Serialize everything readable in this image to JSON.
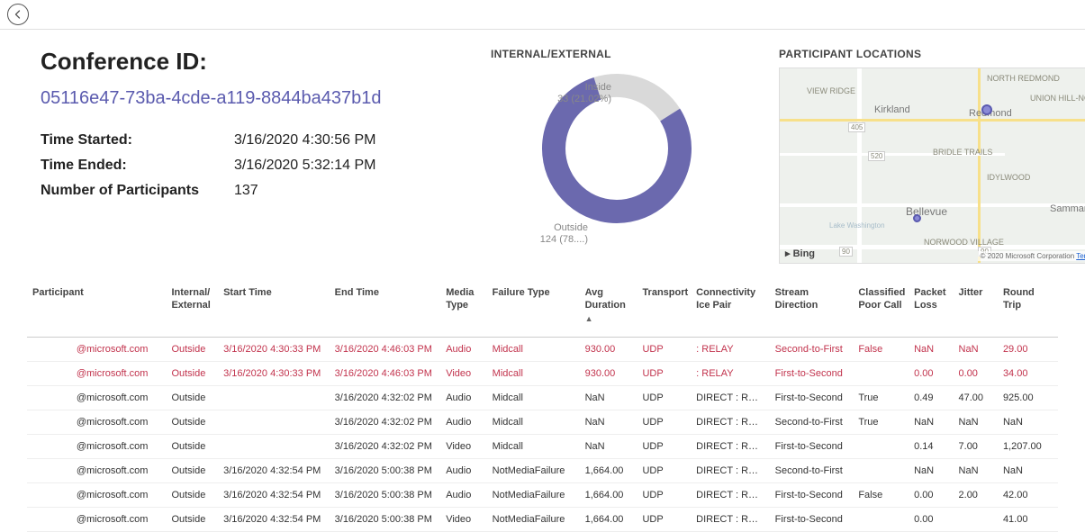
{
  "header": {
    "title_label": "Conference ID:",
    "conference_id": "05116e47-73ba-4cde-a119-8844ba437b1d",
    "time_started_label": "Time Started:",
    "time_started_value": "3/16/2020 4:30:56 PM",
    "time_ended_label": "Time Ended:",
    "time_ended_value": "3/16/2020 5:32:14 PM",
    "participants_label": "Number of Participants",
    "participants_value": "137"
  },
  "donut": {
    "title": "INTERNAL/EXTERNAL",
    "inside_label": "Inside",
    "inside_text": "33 (21.02%)",
    "inside_value": 33,
    "inside_pct": 21.02,
    "outside_label": "Outside",
    "outside_text": "124 (78....)",
    "outside_value": 124,
    "outside_pct": 78.98,
    "colors": {
      "inside": "#d9d9d9",
      "outside": "#6b69ae"
    },
    "thickness": 26,
    "radius": 70
  },
  "map": {
    "title": "PARTICIPANT LOCATIONS",
    "attribution": "© 2020 Microsoft Corporation",
    "terms": "Terms",
    "provider": "Bing",
    "labels": {
      "view_ridge": "VIEW RIDGE",
      "kirkland": "Kirkland",
      "redmond": "Redmond",
      "bellevue": "Bellevue",
      "sammamish": "Sammamish",
      "lakewash": "Lake Washington",
      "northred": "NORTH REDMOND",
      "novelty": "UNION HILL-NOVELTY HILL",
      "bridle": "BRIDLE TRAILS",
      "idylwood": "IDYLWOOD",
      "norwood": "NORWOOD VILLAGE",
      "r405": "405",
      "r520": "520",
      "r90a": "90",
      "r90b": "90"
    }
  },
  "table": {
    "columns": {
      "participant": "Participant",
      "intext": "Internal/\nExternal",
      "start": "Start Time",
      "end": "End Time",
      "media": "Media Type",
      "failure": "Failure Type",
      "avgdur": "Avg Duration",
      "transport": "Transport",
      "ice": "Connectivity Ice Pair",
      "stream": "Stream Direction",
      "poor": "Classified Poor Call",
      "loss": "Packet Loss",
      "jitter": "Jitter",
      "rtt": "Round Trip"
    },
    "sort_indicator": "▲",
    "rows": [
      {
        "bad": true,
        "participant": "@microsoft.com",
        "intext": "Outside",
        "start": "3/16/2020 4:30:33 PM",
        "end": "3/16/2020 4:46:03 PM",
        "media": "Audio",
        "failure": "Midcall",
        "avgdur": "930.00",
        "transport": "UDP",
        "ice": ": RELAY",
        "stream": "Second-to-First",
        "poor": "False",
        "loss": "NaN",
        "jitter": "NaN",
        "rtt": "29.00"
      },
      {
        "bad": true,
        "participant": "@microsoft.com",
        "intext": "Outside",
        "start": "3/16/2020 4:30:33 PM",
        "end": "3/16/2020 4:46:03 PM",
        "media": "Video",
        "failure": "Midcall",
        "avgdur": "930.00",
        "transport": "UDP",
        "ice": ": RELAY",
        "stream": "First-to-Second",
        "poor": "",
        "loss": "0.00",
        "jitter": "0.00",
        "rtt": "34.00"
      },
      {
        "bad": false,
        "participant": "@microsoft.com",
        "intext": "Outside",
        "start": "",
        "end": "3/16/2020 4:32:02 PM",
        "media": "Audio",
        "failure": "Midcall",
        "avgdur": "NaN",
        "transport": "UDP",
        "ice": "DIRECT : RELAY",
        "stream": "First-to-Second",
        "poor": "True",
        "loss": "0.49",
        "jitter": "47.00",
        "rtt": "925.00"
      },
      {
        "bad": false,
        "participant": "@microsoft.com",
        "intext": "Outside",
        "start": "",
        "end": "3/16/2020 4:32:02 PM",
        "media": "Audio",
        "failure": "Midcall",
        "avgdur": "NaN",
        "transport": "UDP",
        "ice": "DIRECT : RELAY",
        "stream": "Second-to-First",
        "poor": "True",
        "loss": "NaN",
        "jitter": "NaN",
        "rtt": "NaN"
      },
      {
        "bad": false,
        "participant": "@microsoft.com",
        "intext": "Outside",
        "start": "",
        "end": "3/16/2020 4:32:02 PM",
        "media": "Video",
        "failure": "Midcall",
        "avgdur": "NaN",
        "transport": "UDP",
        "ice": "DIRECT : RELAY",
        "stream": "First-to-Second",
        "poor": "",
        "loss": "0.14",
        "jitter": "7.00",
        "rtt": "1,207.00"
      },
      {
        "bad": false,
        "participant": "@microsoft.com",
        "intext": "Outside",
        "start": "3/16/2020 4:32:54 PM",
        "end": "3/16/2020 5:00:38 PM",
        "media": "Audio",
        "failure": "NotMediaFailure",
        "avgdur": "1,664.00",
        "transport": "UDP",
        "ice": "DIRECT : RELAY",
        "stream": "Second-to-First",
        "poor": "",
        "loss": "NaN",
        "jitter": "NaN",
        "rtt": "NaN"
      },
      {
        "bad": false,
        "participant": "@microsoft.com",
        "intext": "Outside",
        "start": "3/16/2020 4:32:54 PM",
        "end": "3/16/2020 5:00:38 PM",
        "media": "Audio",
        "failure": "NotMediaFailure",
        "avgdur": "1,664.00",
        "transport": "UDP",
        "ice": "DIRECT : RELAY",
        "stream": "First-to-Second",
        "poor": "False",
        "loss": "0.00",
        "jitter": "2.00",
        "rtt": "42.00"
      },
      {
        "bad": false,
        "participant": "@microsoft.com",
        "intext": "Outside",
        "start": "3/16/2020 4:32:54 PM",
        "end": "3/16/2020 5:00:38 PM",
        "media": "Video",
        "failure": "NotMediaFailure",
        "avgdur": "1,664.00",
        "transport": "UDP",
        "ice": "DIRECT : RELAY",
        "stream": "First-to-Second",
        "poor": "",
        "loss": "0.00",
        "jitter": "",
        "rtt": "41.00"
      }
    ]
  }
}
